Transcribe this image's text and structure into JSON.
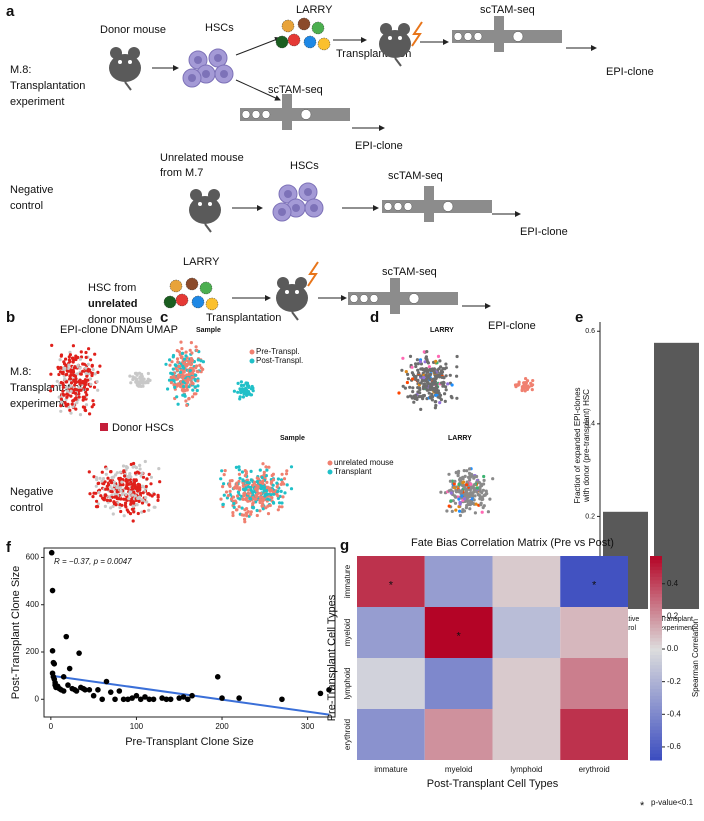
{
  "panel_a": {
    "label": "a",
    "row1": {
      "title_lines": [
        "M.8:",
        "Transplantation",
        "experiment"
      ],
      "donor": "Donor mouse",
      "hscs": "HSCs",
      "larry": "LARRY",
      "transplantation": "Transplantation",
      "sctam_post": "scTAM-seq",
      "epi_post": "EPI-clone",
      "sctam_pre": "scTAM-seq",
      "epi_pre": "EPI-clone"
    },
    "row2": {
      "title_lines": [
        "Negative",
        "control"
      ],
      "mouse_lines": [
        "Unrelated mouse",
        "from M.7"
      ],
      "hscs": "HSCs",
      "sctam": "scTAM-seq",
      "epi": "EPI-clone"
    },
    "row3": {
      "hsc_lines": [
        "HSC from",
        "unrelated",
        "donor mouse"
      ],
      "larry": "LARRY",
      "transplantation": "Transplantation",
      "sctam": "scTAM-seq",
      "epi": "EPI-clone"
    }
  },
  "panel_bcd": {
    "label_b": "b",
    "label_c": "c",
    "label_d": "d",
    "b_title": "EPI-clone DNAm UMAP",
    "row1_lines": [
      "M.8:",
      "Transplantation",
      "experiment"
    ],
    "row2_lines": [
      "Negative",
      "control"
    ],
    "donor_legend": "Donor HSCs",
    "c_title1": "Sample",
    "c_legend1": [
      "Pre-Transpl.",
      "Post-Transpl."
    ],
    "d_title1": "LARRY",
    "c_title2": "Sample",
    "c_legend2": [
      "unrelated mouse",
      "Transplant"
    ],
    "d_title2": "LARRY"
  },
  "chart_data": [
    {
      "panel": "e",
      "type": "bar",
      "ylabel_lines": [
        "Fraction of expanded EPI-clones",
        "with donor (pre-transplant) HSC"
      ],
      "categories": [
        "Negative control",
        "Transplant experiment"
      ],
      "values": [
        0.21,
        0.575
      ],
      "color": "#595959",
      "ylim": [
        0,
        0.62
      ],
      "yticks": [
        0,
        0.2,
        0.4,
        0.6
      ]
    },
    {
      "panel": "f",
      "type": "scatter",
      "xlabel": "Pre-Transplant Clone Size",
      "ylabel": "Post-Transplant Clone Size",
      "annotation": "R = −0.37, p = 0.0047",
      "x": [
        1,
        2,
        2,
        3,
        4,
        2,
        3,
        4,
        5,
        5,
        6,
        8,
        10,
        12,
        15,
        15,
        18,
        20,
        22,
        25,
        28,
        30,
        33,
        35,
        38,
        40,
        45,
        50,
        55,
        60,
        65,
        70,
        75,
        80,
        85,
        90,
        95,
        100,
        105,
        110,
        115,
        120,
        130,
        135,
        140,
        150,
        155,
        160,
        165,
        195,
        200,
        220,
        270,
        315,
        325
      ],
      "y": [
        620,
        460,
        205,
        155,
        150,
        110,
        95,
        85,
        70,
        60,
        50,
        55,
        45,
        40,
        35,
        95,
        265,
        60,
        130,
        45,
        40,
        35,
        195,
        50,
        45,
        40,
        40,
        15,
        40,
        0,
        75,
        30,
        0,
        35,
        0,
        0,
        5,
        15,
        0,
        10,
        0,
        0,
        5,
        0,
        0,
        5,
        10,
        0,
        15,
        95,
        5,
        5,
        0,
        25,
        40
      ],
      "point_color": "#000000",
      "fit": {
        "x": [
          0,
          325
        ],
        "y": [
          100,
          -65
        ],
        "color": "#3a6fd8"
      },
      "xlim": [
        -8,
        332
      ],
      "ylim": [
        -75,
        640
      ],
      "xticks": [
        0,
        100,
        200,
        300
      ],
      "yticks": [
        0,
        200,
        400,
        600
      ]
    },
    {
      "panel": "g",
      "type": "heatmap",
      "title": "Fate Bias Correlation Matrix (Pre vs Post)",
      "xlabel": "Post-Transplant Cell Types",
      "ylabel": "Pre-Transplant Cell Types",
      "colorbar_label": "Spearman Correlation",
      "columns": [
        "immature",
        "myeloid",
        "lymphoid",
        "erythroid"
      ],
      "rows": [
        "immature",
        "myeloid",
        "lymphoid",
        "erythroid"
      ],
      "values": [
        [
          0.45,
          -0.3,
          0.05,
          -0.65
        ],
        [
          -0.3,
          0.57,
          -0.15,
          0.1
        ],
        [
          -0.05,
          -0.4,
          0.05,
          0.25
        ],
        [
          -0.35,
          0.2,
          0.05,
          0.45
        ]
      ],
      "star": "*",
      "significant": [
        [
          0,
          0
        ],
        [
          1,
          1
        ],
        [
          0,
          3
        ]
      ],
      "legend_note": "p-value<0.1",
      "clim": [
        -0.68,
        0.57
      ],
      "cticks": [
        -0.6,
        -0.4,
        -0.2,
        {
          "value": 0,
          "label": "0.0"
        },
        0.2,
        0.4
      ]
    }
  ]
}
